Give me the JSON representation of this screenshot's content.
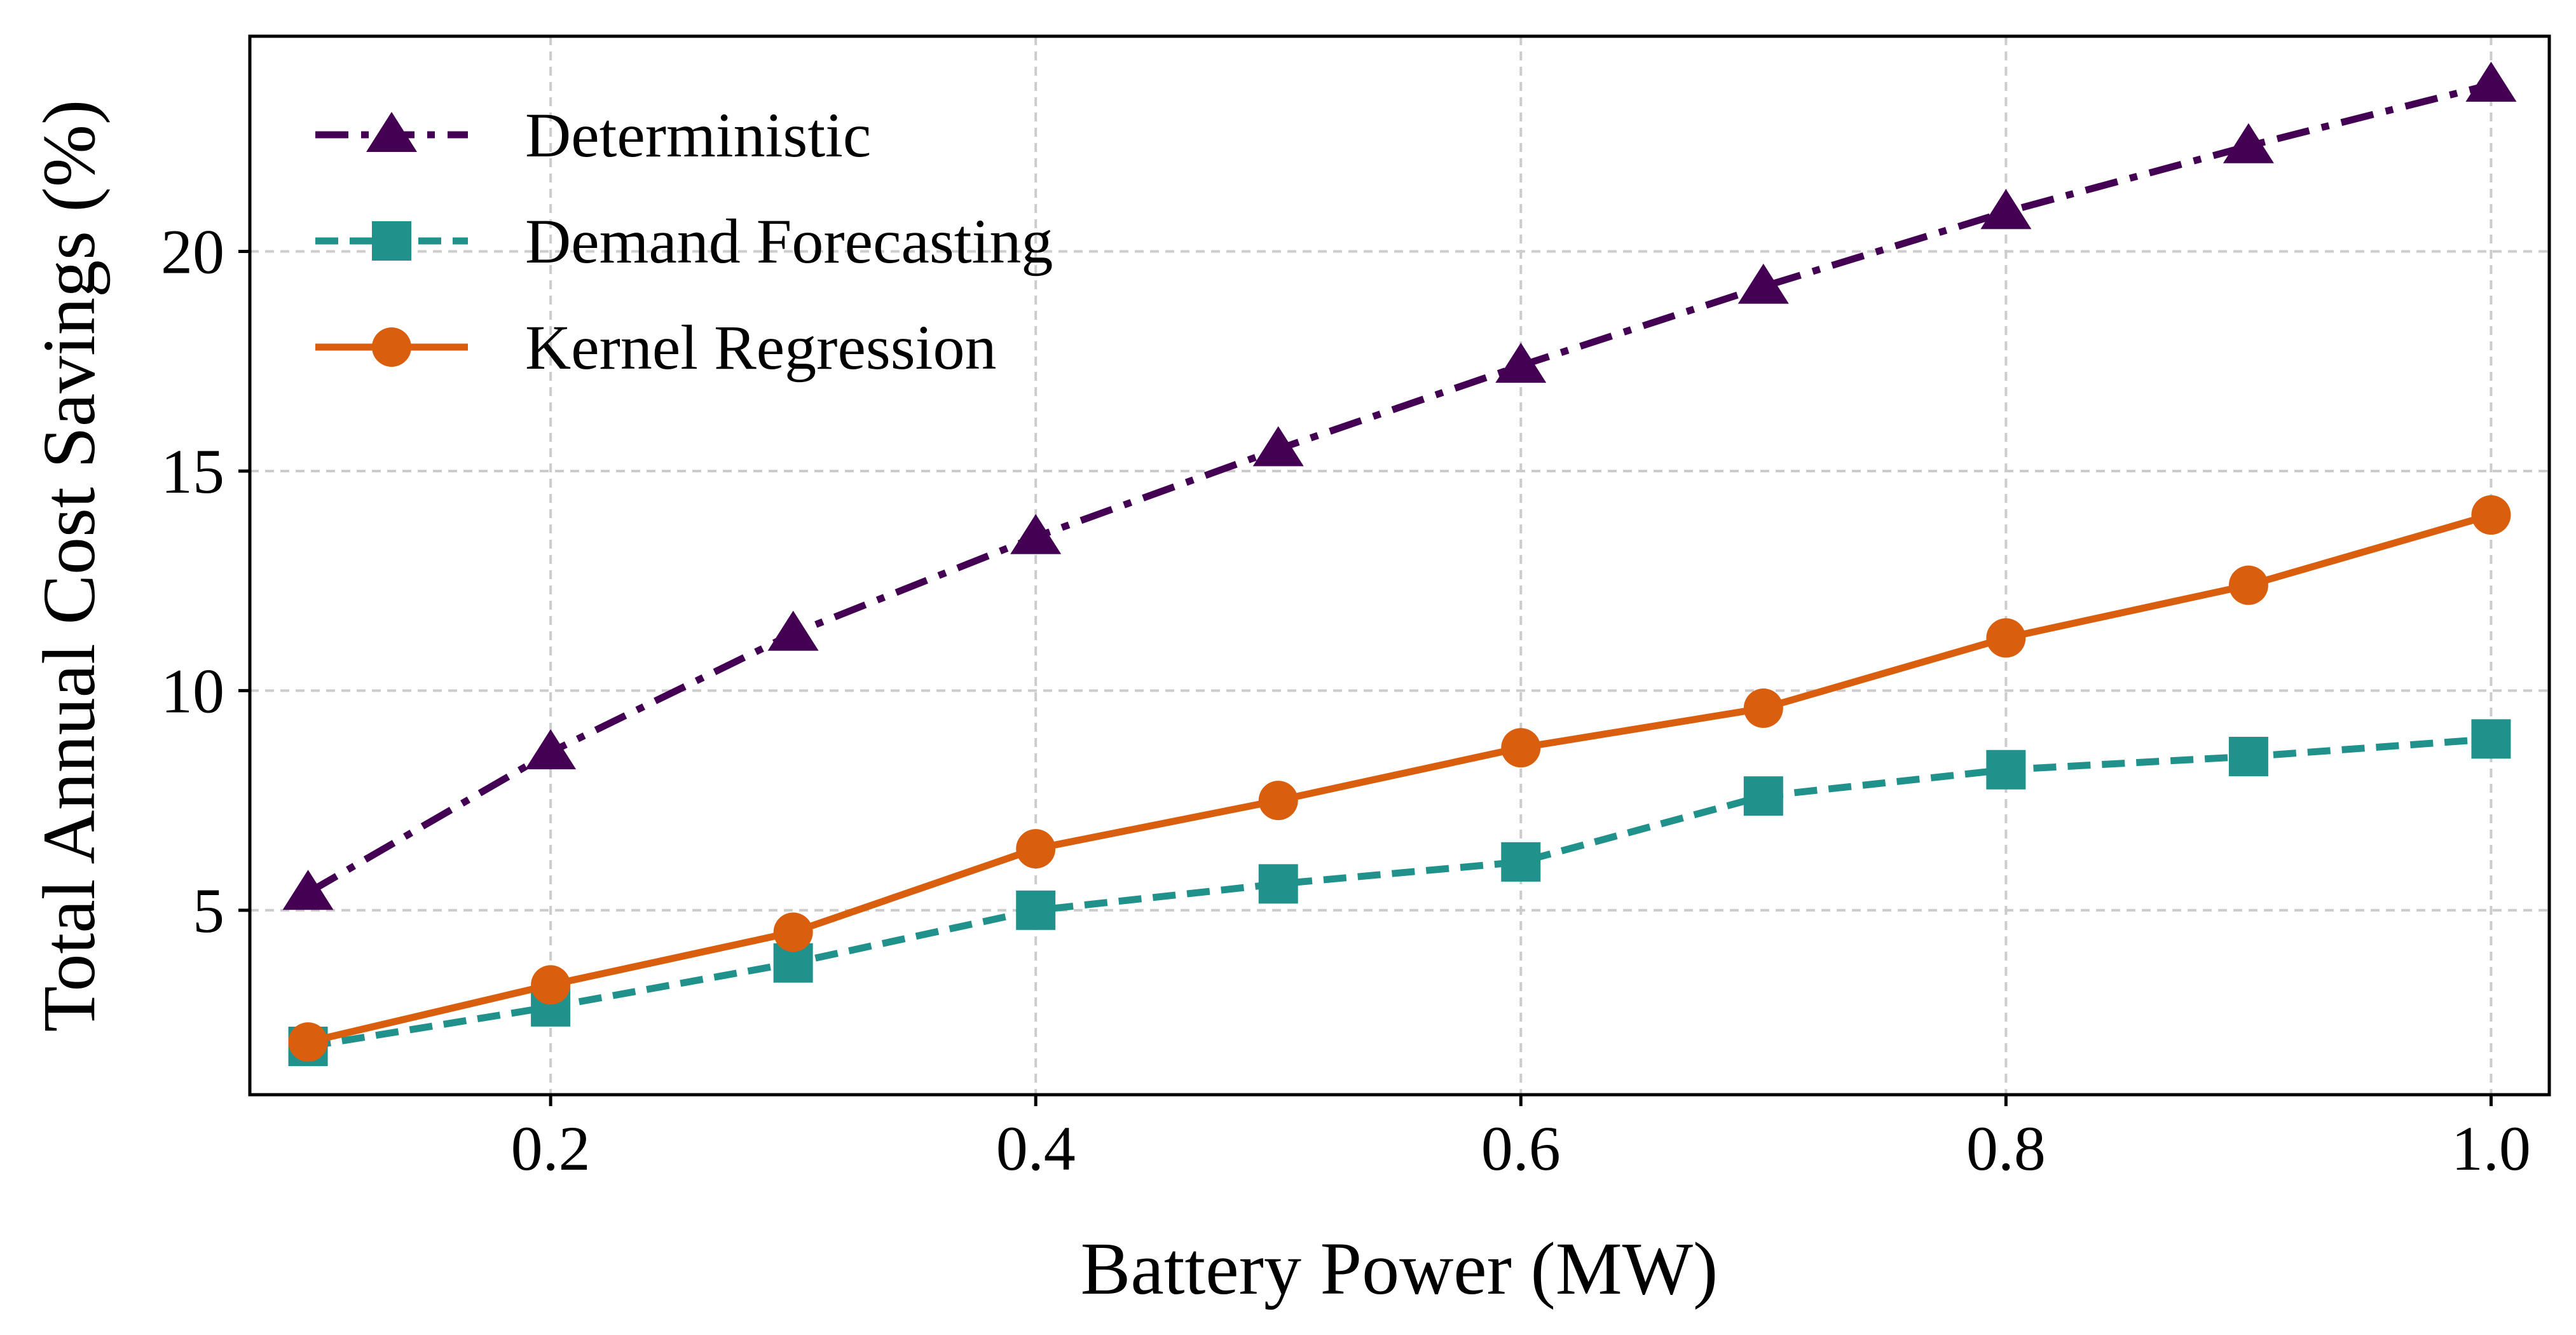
{
  "chart_data": {
    "type": "line",
    "title": "",
    "xlabel": "Battery Power (MW)",
    "ylabel": "Total Annual Cost Savings (%)",
    "xlim": [
      0.076,
      1.024
    ],
    "ylim": [
      0.8,
      24.9
    ],
    "xticks": [
      0.2,
      0.4,
      0.6,
      0.8,
      1.0
    ],
    "xtick_labels": [
      "0.2",
      "0.4",
      "0.6",
      "0.8",
      "1.0"
    ],
    "yticks": [
      5,
      10,
      15,
      20
    ],
    "ytick_labels": [
      "5",
      "10",
      "15",
      "20"
    ],
    "grid": true,
    "legend_position": "top-left",
    "x": [
      0.1,
      0.2,
      0.3,
      0.4,
      0.5,
      0.6,
      0.7,
      0.8,
      0.9,
      1.0
    ],
    "series": [
      {
        "name": "Deterministic",
        "values": [
          5.4,
          8.6,
          11.3,
          13.5,
          15.5,
          17.4,
          19.2,
          20.9,
          22.4,
          23.8
        ],
        "color": "#440154",
        "marker": "triangle",
        "line_style": "dashdot"
      },
      {
        "name": "Demand Forecasting",
        "values": [
          1.9,
          2.8,
          3.8,
          5.0,
          5.6,
          6.1,
          7.6,
          8.2,
          8.5,
          8.9
        ],
        "color": "#21918c",
        "marker": "square",
        "line_style": "dashed"
      },
      {
        "name": "Kernel Regression",
        "values": [
          2.0,
          3.3,
          4.5,
          6.4,
          7.5,
          8.7,
          9.6,
          11.2,
          12.4,
          14.0
        ],
        "color": "#d95f0e",
        "marker": "circle",
        "line_style": "solid"
      }
    ]
  }
}
